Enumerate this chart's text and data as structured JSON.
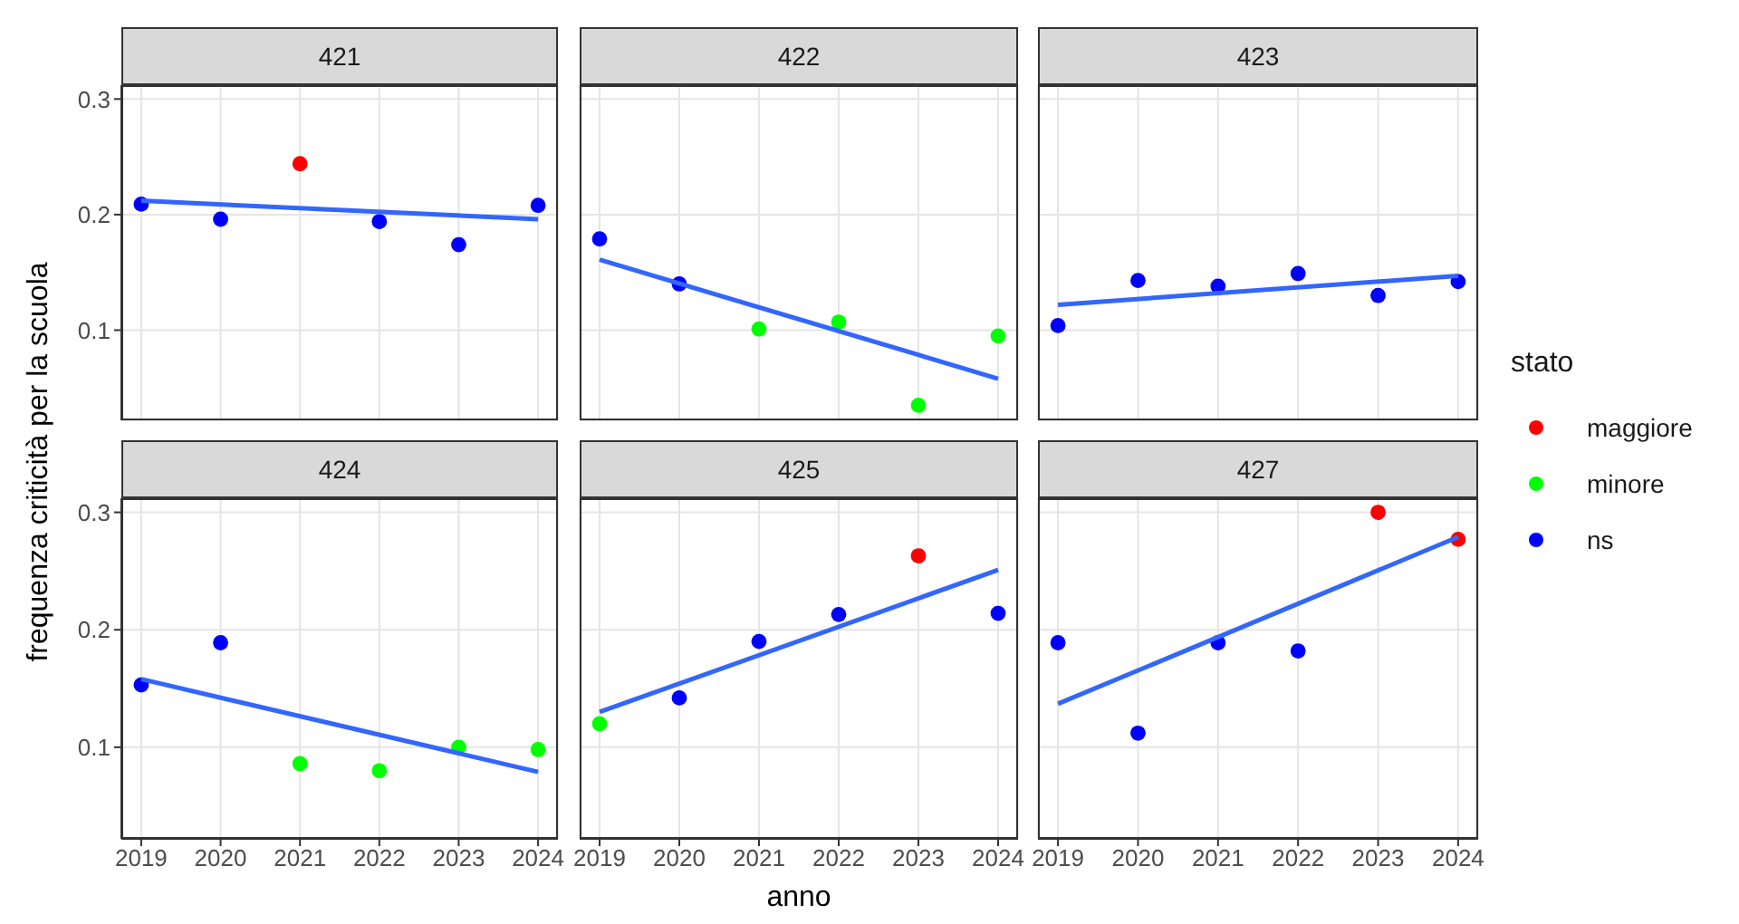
{
  "chart_data": [
    {
      "type": "scatter",
      "title": "421",
      "ylabel": "frequenza criticità per la scuola",
      "x": [
        2019,
        2020,
        2021,
        2022,
        2023,
        2024
      ],
      "xlim": [
        2018.75,
        2024.25
      ],
      "xticks": [
        2019,
        2020,
        2021,
        2022,
        2023,
        2024
      ],
      "ylim": [
        0.022,
        0.312
      ],
      "yticks": [
        0.1,
        0.2,
        0.3
      ],
      "grid": true,
      "marker": "circle",
      "tick_labels": "y",
      "series": [
        {
          "color": "#ff0000",
          "values": [
            null,
            null,
            0.244,
            null,
            null,
            null
          ]
        },
        {
          "color": "#0000ff",
          "values": [
            0.209,
            0.196,
            null,
            0.194,
            0.174,
            0.208
          ]
        },
        {
          "type": "line",
          "marker": "none",
          "color": "#3366ff",
          "values": [
            0.212,
            null,
            null,
            null,
            null,
            0.196
          ]
        }
      ]
    },
    {
      "type": "scatter",
      "title": "422",
      "x": [
        2019,
        2020,
        2021,
        2022,
        2023,
        2024
      ],
      "xlim": [
        2018.75,
        2024.25
      ],
      "xticks": [
        2019,
        2020,
        2021,
        2022,
        2023,
        2024
      ],
      "ylim": [
        0.022,
        0.312
      ],
      "yticks": [
        0.1,
        0.2,
        0.3
      ],
      "grid": true,
      "marker": "circle",
      "tick_labels": false,
      "series": [
        {
          "color": "#00ff00",
          "values": [
            null,
            null,
            0.101,
            0.107,
            0.035,
            0.095
          ]
        },
        {
          "color": "#0000ff",
          "values": [
            0.179,
            0.14,
            null,
            null,
            null,
            null
          ]
        },
        {
          "type": "line",
          "marker": "none",
          "color": "#3366ff",
          "values": [
            0.161,
            null,
            null,
            null,
            null,
            0.058
          ]
        }
      ]
    },
    {
      "type": "scatter",
      "title": "423",
      "x": [
        2019,
        2020,
        2021,
        2022,
        2023,
        2024
      ],
      "xlim": [
        2018.75,
        2024.25
      ],
      "xticks": [
        2019,
        2020,
        2021,
        2022,
        2023,
        2024
      ],
      "ylim": [
        0.022,
        0.312
      ],
      "yticks": [
        0.1,
        0.2,
        0.3
      ],
      "grid": true,
      "marker": "circle",
      "tick_labels": false,
      "series": [
        {
          "color": "#0000ff",
          "values": [
            0.104,
            0.143,
            0.138,
            0.149,
            0.13,
            0.142
          ]
        },
        {
          "type": "line",
          "marker": "none",
          "color": "#3366ff",
          "values": [
            0.122,
            null,
            null,
            null,
            null,
            0.147
          ]
        }
      ]
    },
    {
      "type": "scatter",
      "title": "424",
      "x": [
        2019,
        2020,
        2021,
        2022,
        2023,
        2024
      ],
      "xlim": [
        2018.75,
        2024.25
      ],
      "xticks": [
        2019,
        2020,
        2021,
        2022,
        2023,
        2024
      ],
      "ylim": [
        0.022,
        0.312
      ],
      "yticks": [
        0.1,
        0.2,
        0.3
      ],
      "grid": true,
      "marker": "circle",
      "series": [
        {
          "color": "#00ff00",
          "values": [
            null,
            null,
            0.086,
            0.08,
            0.1,
            0.098
          ]
        },
        {
          "color": "#0000ff",
          "values": [
            0.153,
            0.189,
            null,
            null,
            null,
            null
          ]
        },
        {
          "type": "line",
          "marker": "none",
          "color": "#3366ff",
          "values": [
            0.158,
            null,
            null,
            null,
            null,
            0.079
          ]
        }
      ]
    },
    {
      "type": "scatter",
      "title": "425",
      "xlabel": "anno",
      "x": [
        2019,
        2020,
        2021,
        2022,
        2023,
        2024
      ],
      "xlim": [
        2018.75,
        2024.25
      ],
      "xticks": [
        2019,
        2020,
        2021,
        2022,
        2023,
        2024
      ],
      "ylim": [
        0.022,
        0.312
      ],
      "yticks": [
        0.1,
        0.2,
        0.3
      ],
      "grid": true,
      "marker": "circle",
      "tick_labels": "x",
      "series": [
        {
          "color": "#ff0000",
          "values": [
            null,
            null,
            null,
            null,
            0.263,
            null
          ]
        },
        {
          "color": "#00ff00",
          "values": [
            0.12,
            null,
            null,
            null,
            null,
            null
          ]
        },
        {
          "color": "#0000ff",
          "values": [
            null,
            0.142,
            0.19,
            0.213,
            null,
            0.214
          ]
        },
        {
          "type": "line",
          "marker": "none",
          "color": "#3366ff",
          "values": [
            0.13,
            null,
            null,
            null,
            null,
            0.251
          ]
        }
      ]
    },
    {
      "type": "scatter",
      "title": "427",
      "legend": "right",
      "legend_title": "stato",
      "x": [
        2019,
        2020,
        2021,
        2022,
        2023,
        2024
      ],
      "xlim": [
        2018.75,
        2024.25
      ],
      "xticks": [
        2019,
        2020,
        2021,
        2022,
        2023,
        2024
      ],
      "ylim": [
        0.022,
        0.312
      ],
      "yticks": [
        0.1,
        0.2,
        0.3
      ],
      "grid": true,
      "marker": "circle",
      "tick_labels": "x",
      "series": [
        {
          "name": "maggiore",
          "color": "#ff0000",
          "values": [
            null,
            null,
            null,
            null,
            0.3,
            0.277
          ]
        },
        {
          "name": "minore",
          "color": "#00ff00",
          "values": [
            null,
            null,
            null,
            null,
            null,
            null
          ]
        },
        {
          "name": "ns",
          "color": "#0000ff",
          "values": [
            0.189,
            0.112,
            0.189,
            0.182,
            null,
            null
          ]
        },
        {
          "type": "line",
          "marker": "none",
          "color": "#3366ff",
          "values": [
            0.137,
            null,
            null,
            null,
            null,
            0.279
          ]
        }
      ]
    }
  ]
}
